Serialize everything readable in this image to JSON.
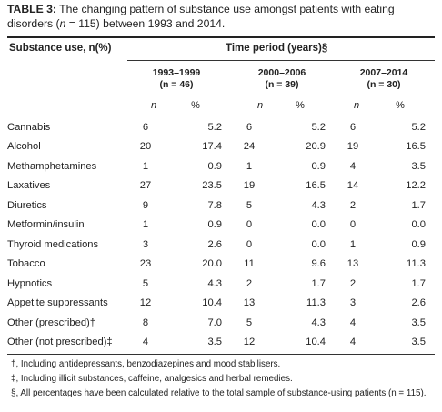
{
  "caption": {
    "label": "TABLE 3:",
    "text_pre": "The changing pattern of substance use amongst patients with eating disorders (",
    "n_text": "n",
    "text_post": " = 115) between 1993 and 2014."
  },
  "header": {
    "substance_col": "Substance use, n(%)",
    "time_period": "Time period (years)§"
  },
  "periods": [
    {
      "years": "1993–1999",
      "count": "(n = 46)"
    },
    {
      "years": "2000–2006",
      "count": "(n = 39)"
    },
    {
      "years": "2007–2014",
      "count": "(n = 30)"
    }
  ],
  "subheaders": {
    "n": "n",
    "pct": "%"
  },
  "rows": [
    {
      "name": "Cannabis",
      "v": [
        "6",
        "5.2",
        "6",
        "5.2",
        "6",
        "5.2"
      ]
    },
    {
      "name": "Alcohol",
      "v": [
        "20",
        "17.4",
        "24",
        "20.9",
        "19",
        "16.5"
      ]
    },
    {
      "name": "Methamphetamines",
      "v": [
        "1",
        "0.9",
        "1",
        "0.9",
        "4",
        "3.5"
      ]
    },
    {
      "name": "Laxatives",
      "v": [
        "27",
        "23.5",
        "19",
        "16.5",
        "14",
        "12.2"
      ]
    },
    {
      "name": "Diuretics",
      "v": [
        "9",
        "7.8",
        "5",
        "4.3",
        "2",
        "1.7"
      ]
    },
    {
      "name": "Metformin/insulin",
      "v": [
        "1",
        "0.9",
        "0",
        "0.0",
        "0",
        "0.0"
      ]
    },
    {
      "name": "Thyroid medications",
      "v": [
        "3",
        "2.6",
        "0",
        "0.0",
        "1",
        "0.9"
      ]
    },
    {
      "name": "Tobacco",
      "v": [
        "23",
        "20.0",
        "11",
        "9.6",
        "13",
        "11.3"
      ]
    },
    {
      "name": "Hypnotics",
      "v": [
        "5",
        "4.3",
        "2",
        "1.7",
        "2",
        "1.7"
      ]
    },
    {
      "name": "Appetite suppressants",
      "v": [
        "12",
        "10.4",
        "13",
        "11.3",
        "3",
        "2.6"
      ]
    },
    {
      "name": "Other (prescribed)†",
      "v": [
        "8",
        "7.0",
        "5",
        "4.3",
        "4",
        "3.5"
      ]
    },
    {
      "name": "Other (not prescribed)‡",
      "v": [
        "4",
        "3.5",
        "12",
        "10.4",
        "4",
        "3.5"
      ]
    }
  ],
  "footnotes": [
    "†, Including antidepressants, benzodiazepines and mood stabilisers.",
    "‡, Including illicit substances, caffeine, analgesics and herbal remedies.",
    "§, All percentages have been calculated relative to the total sample of substance-using patients (n = 115)."
  ]
}
